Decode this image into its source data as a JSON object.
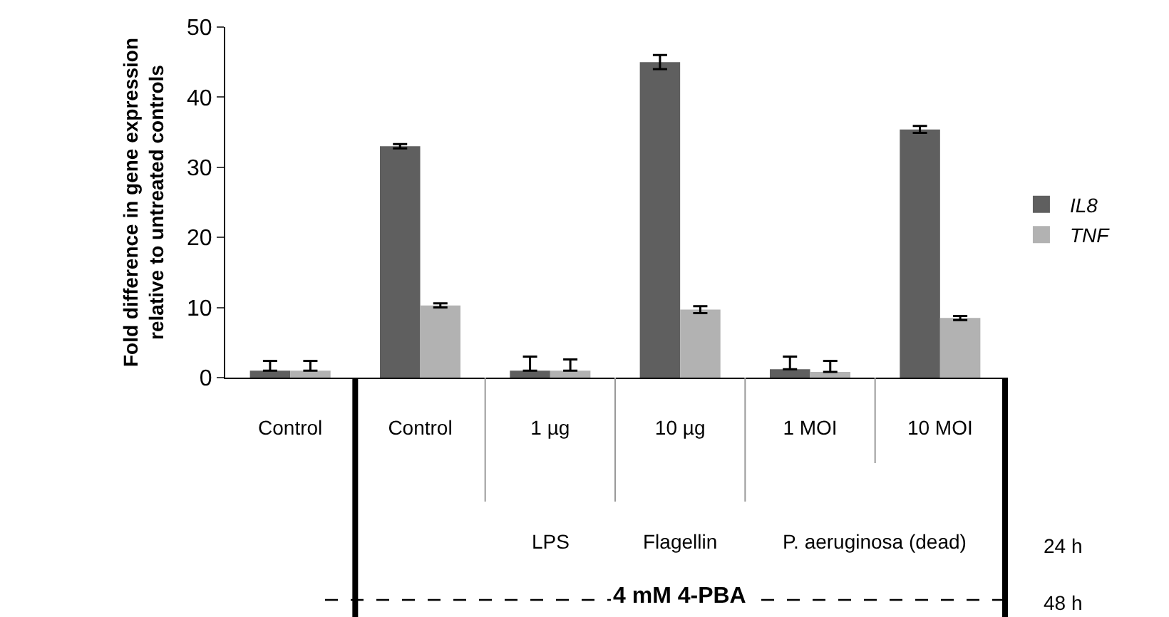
{
  "chart_data": {
    "type": "bar",
    "categories": [
      "Control",
      "Control",
      "1 µg",
      "10 µg",
      "1 MOI",
      "10 MOI"
    ],
    "series": [
      {
        "name": "IL8",
        "color": "#5f5f5f",
        "values": [
          1,
          33,
          1,
          45,
          1.2,
          35.4
        ],
        "errors": [
          [
            1,
            2.4
          ],
          0.3,
          [
            1,
            3
          ],
          1,
          [
            1.2,
            3
          ],
          0.5
        ]
      },
      {
        "name": "TNF",
        "color": "#b2b2b2",
        "values": [
          1,
          10.3,
          1,
          9.7,
          0.8,
          8.5
        ],
        "errors": [
          [
            1,
            2.4
          ],
          0.3,
          [
            1,
            2.6
          ],
          0.5,
          [
            0.8,
            2.4
          ],
          0.3
        ]
      }
    ],
    "ylabel": "Fold difference in gene expression\nrelative to untreated controls",
    "ylim": [
      0,
      50
    ],
    "yticks": [
      0,
      10,
      20,
      30,
      40,
      50
    ],
    "grid": false,
    "legend": "right",
    "annotations": [
      "LPS",
      "Flagellin",
      "P. aeruginosa (dead)",
      "24 h",
      "4 mM 4-PBA",
      "48 h"
    ]
  }
}
